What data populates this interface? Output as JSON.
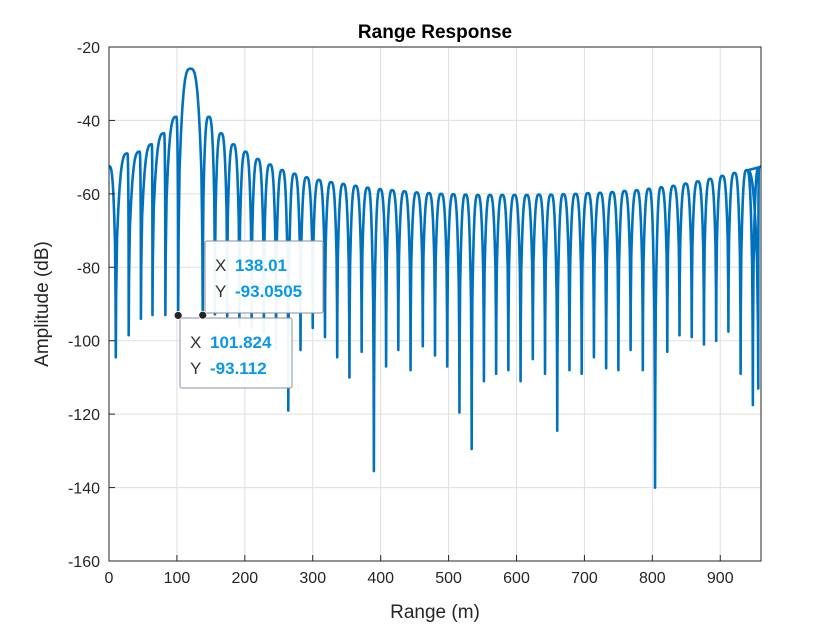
{
  "chart_data": {
    "type": "line",
    "title": "Range Response",
    "xlabel": "Range (m)",
    "ylabel": "Amplitude (dB)",
    "xlim": [
      0,
      960
    ],
    "ylim": [
      -160,
      -20
    ],
    "xticks": [
      0,
      100,
      200,
      300,
      400,
      500,
      600,
      700,
      800,
      900
    ],
    "yticks": [
      -160,
      -140,
      -120,
      -100,
      -80,
      -60,
      -40,
      -20
    ],
    "grid": true,
    "series": [
      {
        "color": "#0072bd",
        "peak": {
          "x": 120,
          "y": -25.9
        },
        "lobe_peaks": [
          {
            "x": 0,
            "y": -52.5
          },
          {
            "x": 10,
            "y": -51.5
          },
          {
            "x": 27,
            "y": -49
          },
          {
            "x": 45,
            "y": -48.5
          },
          {
            "x": 63,
            "y": -46.5
          },
          {
            "x": 81,
            "y": -43.5
          },
          {
            "x": 99,
            "y": -39
          },
          {
            "x": 120,
            "y": -25.9
          },
          {
            "x": 147,
            "y": -39
          },
          {
            "x": 165,
            "y": -43.5
          },
          {
            "x": 183,
            "y": -46.5
          },
          {
            "x": 201,
            "y": -48.5
          },
          {
            "x": 219,
            "y": -50.5
          },
          {
            "x": 237,
            "y": -52
          },
          {
            "x": 255,
            "y": -53.5
          },
          {
            "x": 273,
            "y": -54.5
          },
          {
            "x": 291,
            "y": -55.5
          },
          {
            "x": 309,
            "y": -56.2
          },
          {
            "x": 327,
            "y": -56.8
          },
          {
            "x": 345,
            "y": -57.3
          },
          {
            "x": 363,
            "y": -57.8
          },
          {
            "x": 381,
            "y": -58.3
          },
          {
            "x": 399,
            "y": -58.7
          },
          {
            "x": 417,
            "y": -59
          },
          {
            "x": 435,
            "y": -59.3
          },
          {
            "x": 453,
            "y": -59.6
          },
          {
            "x": 471,
            "y": -59.8
          },
          {
            "x": 489,
            "y": -60
          },
          {
            "x": 507,
            "y": -60.1
          },
          {
            "x": 525,
            "y": -60.2
          },
          {
            "x": 543,
            "y": -60.3
          },
          {
            "x": 561,
            "y": -60.3
          },
          {
            "x": 579,
            "y": -60.3
          },
          {
            "x": 597,
            "y": -60.3
          },
          {
            "x": 615,
            "y": -60.3
          },
          {
            "x": 633,
            "y": -60.2
          },
          {
            "x": 651,
            "y": -60.2
          },
          {
            "x": 669,
            "y": -60.1
          },
          {
            "x": 687,
            "y": -60
          },
          {
            "x": 705,
            "y": -59.8
          },
          {
            "x": 723,
            "y": -59.7
          },
          {
            "x": 741,
            "y": -59.5
          },
          {
            "x": 759,
            "y": -59.2
          },
          {
            "x": 777,
            "y": -59
          },
          {
            "x": 795,
            "y": -58.6
          },
          {
            "x": 813,
            "y": -58.2
          },
          {
            "x": 831,
            "y": -57.8
          },
          {
            "x": 849,
            "y": -57.2
          },
          {
            "x": 867,
            "y": -56.6
          },
          {
            "x": 885,
            "y": -55.9
          },
          {
            "x": 903,
            "y": -55.1
          },
          {
            "x": 921,
            "y": -54.3
          },
          {
            "x": 939,
            "y": -53.5
          },
          {
            "x": 957,
            "y": -52.8
          },
          {
            "x": 960,
            "y": -52.5
          }
        ],
        "nulls": [
          {
            "x": 10,
            "y": -104.5
          },
          {
            "x": 29,
            "y": -98.5
          },
          {
            "x": 47,
            "y": -94
          },
          {
            "x": 64,
            "y": -93
          },
          {
            "x": 83,
            "y": -93
          },
          {
            "x": 101.824,
            "y": -93.112
          },
          {
            "x": 138.01,
            "y": -93.0505
          },
          {
            "x": 156,
            "y": -92.8
          },
          {
            "x": 174,
            "y": -93.3
          },
          {
            "x": 192,
            "y": -96
          },
          {
            "x": 210,
            "y": -96.5
          },
          {
            "x": 228,
            "y": -98
          },
          {
            "x": 246,
            "y": -102
          },
          {
            "x": 264,
            "y": -119
          },
          {
            "x": 282,
            "y": -102.5
          },
          {
            "x": 300,
            "y": -96.5
          },
          {
            "x": 318,
            "y": -99
          },
          {
            "x": 336,
            "y": -104.5
          },
          {
            "x": 354,
            "y": -110
          },
          {
            "x": 372,
            "y": -103
          },
          {
            "x": 390,
            "y": -135.5
          },
          {
            "x": 408,
            "y": -107
          },
          {
            "x": 426,
            "y": -102.5
          },
          {
            "x": 444,
            "y": -108
          },
          {
            "x": 462,
            "y": -101.5
          },
          {
            "x": 480,
            "y": -104
          },
          {
            "x": 498,
            "y": -107
          },
          {
            "x": 516,
            "y": -119.5
          },
          {
            "x": 534,
            "y": -129.5
          },
          {
            "x": 552,
            "y": -111
          },
          {
            "x": 570,
            "y": -109
          },
          {
            "x": 588,
            "y": -108
          },
          {
            "x": 606,
            "y": -111
          },
          {
            "x": 624,
            "y": -105
          },
          {
            "x": 642,
            "y": -109
          },
          {
            "x": 660,
            "y": -124.5
          },
          {
            "x": 678,
            "y": -108
          },
          {
            "x": 696,
            "y": -109
          },
          {
            "x": 714,
            "y": -104.5
          },
          {
            "x": 732,
            "y": -107.5
          },
          {
            "x": 750,
            "y": -108
          },
          {
            "x": 768,
            "y": -102.5
          },
          {
            "x": 786,
            "y": -108
          },
          {
            "x": 804,
            "y": -140
          },
          {
            "x": 822,
            "y": -103
          },
          {
            "x": 840,
            "y": -98.5
          },
          {
            "x": 858,
            "y": -99
          },
          {
            "x": 876,
            "y": -101
          },
          {
            "x": 894,
            "y": -100
          },
          {
            "x": 912,
            "y": -97.5
          },
          {
            "x": 930,
            "y": -109
          },
          {
            "x": 948,
            "y": -117.5
          },
          {
            "x": 956,
            "y": -113
          }
        ]
      }
    ],
    "annotations": [
      {
        "type": "datatip",
        "x": 138.01,
        "y": -93.0505,
        "x_label": "X",
        "y_label": "Y",
        "x_text": "138.01",
        "y_text": "-93.0505"
      },
      {
        "type": "datatip",
        "x": 101.824,
        "y": -93.112,
        "x_label": "X",
        "y_label": "Y",
        "x_text": "101.824",
        "y_text": "-93.112"
      }
    ]
  }
}
